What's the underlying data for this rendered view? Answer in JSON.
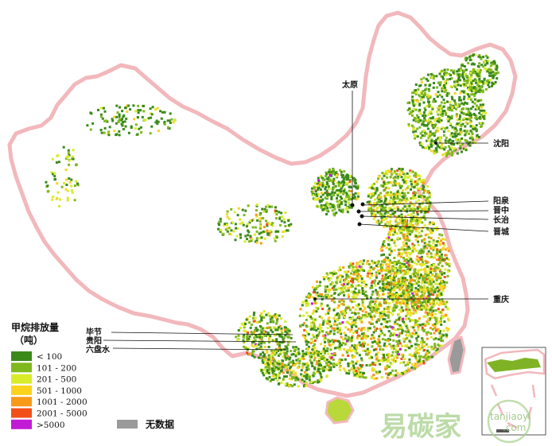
{
  "legend": {
    "title_line1": "甲烷排放量",
    "title_line2": "（吨）",
    "items": [
      {
        "label": "< 100",
        "color": "#3a8a1a"
      },
      {
        "label": "101 - 200",
        "color": "#80b91e"
      },
      {
        "label": "201 - 500",
        "color": "#d9ec2a"
      },
      {
        "label": "501 - 1000",
        "color": "#fbd31c"
      },
      {
        "label": "1001 - 2000",
        "color": "#f79a19"
      },
      {
        "label": "2001 - 5000",
        "color": "#f2501a"
      },
      {
        "label": ">5000",
        "color": "#c21bd6"
      }
    ],
    "nodata_label": "无数据",
    "nodata_color": "#9a9a9a"
  },
  "cities": {
    "taiyuan": "太原",
    "shenyang": "沈阳",
    "yangquan": "阳泉",
    "jinzhong": "晋中",
    "changzhi": "长治",
    "jincheng": "晋城",
    "chongqing": "重庆",
    "bijie": "毕节",
    "guiyang": "贵阳",
    "liupanshui": "六盘水"
  },
  "watermark": {
    "chinese": "易碳家",
    "latin_top": "tanjiaoyi",
    "latin_bottom": ".com"
  },
  "colors": {
    "border": "#f2b8bc",
    "land": "#ffffff",
    "sea_islands": "#9a9a9a"
  }
}
